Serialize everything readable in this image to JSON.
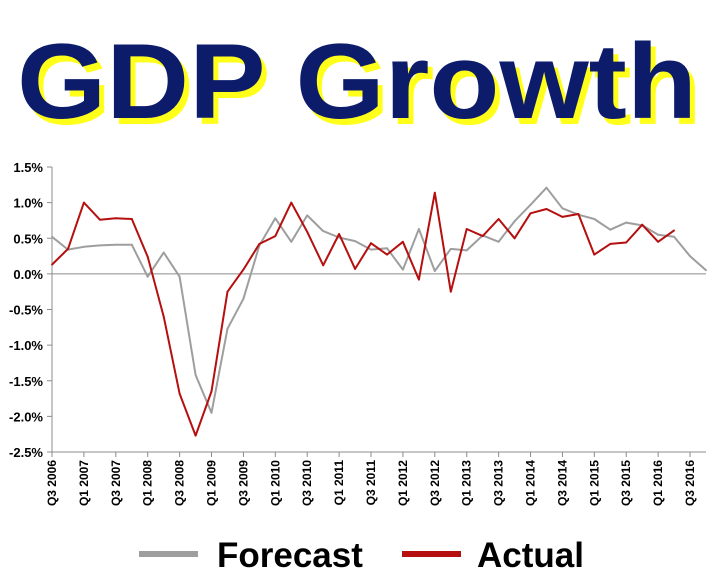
{
  "chart_data": {
    "type": "line",
    "title": "GDP Growth",
    "colors": {
      "title_fill": "#0c1c6b",
      "title_shadow": "#ffff1a",
      "forecast": "#9e9e9e",
      "actual": "#b50f0f",
      "axis": "#8c8c8c"
    },
    "ylim": [
      -2.5,
      1.5
    ],
    "y_ticks": [
      "1.5%",
      "1.0%",
      "0.5%",
      "0.0%",
      "-0.5%",
      "-1.0%",
      "-1.5%",
      "-2.0%",
      "-2.5%"
    ],
    "x_tick_labels": [
      "Q3 2006",
      "Q1 2007",
      "Q3 2007",
      "Q1 2008",
      "Q3 2008",
      "Q1 2009",
      "Q3 2009",
      "Q1 2010",
      "Q3 2010",
      "Q1 2011",
      "Q3 2011",
      "Q1 2012",
      "Q3 2012",
      "Q1 2013",
      "Q3 2013",
      "Q1 2014",
      "Q3 2014",
      "Q1 2015",
      "Q3 2015",
      "Q1 2016",
      "Q3 2016"
    ],
    "series": [
      {
        "name": "Forecast",
        "values": [
          0.52,
          0.34,
          0.38,
          0.4,
          0.41,
          0.41,
          -0.04,
          0.3,
          -0.04,
          -1.42,
          -1.95,
          -0.77,
          -0.35,
          0.4,
          0.78,
          0.45,
          0.82,
          0.6,
          0.51,
          0.46,
          0.34,
          0.36,
          0.06,
          0.63,
          0.04,
          0.35,
          0.33,
          0.54,
          0.45,
          0.74,
          0.97,
          1.21,
          0.92,
          0.83,
          0.77,
          0.62,
          0.72,
          0.68,
          0.55,
          0.52,
          0.25,
          0.05
        ]
      },
      {
        "name": "Actual",
        "values": [
          0.13,
          0.35,
          1.0,
          0.76,
          0.78,
          0.77,
          0.24,
          -0.6,
          -1.68,
          -2.27,
          -1.65,
          -0.25,
          0.06,
          0.42,
          0.53,
          1.0,
          0.59,
          0.12,
          0.56,
          0.07,
          0.43,
          0.27,
          0.45,
          -0.08,
          1.14,
          -0.25,
          0.63,
          0.53,
          0.77,
          0.5,
          0.85,
          0.91,
          0.8,
          0.84,
          0.27,
          0.42,
          0.44,
          0.69,
          0.45,
          0.61
        ]
      }
    ],
    "legend": {
      "position": "bottom"
    }
  }
}
